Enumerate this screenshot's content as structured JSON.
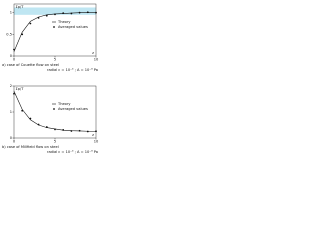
{
  "chart_data": [
    {
      "type": "line",
      "ylabel": "Σp/T",
      "xlabel": "z",
      "caption": "a) case of Couette flow on steel",
      "caption2": "radial c = 10⁻³ ; A = 10⁻⁸ Pa",
      "x": [
        0,
        1,
        2,
        3,
        4,
        5,
        6,
        7,
        8,
        9,
        10
      ],
      "xlim": [
        0,
        10
      ],
      "xticks": [
        0,
        5,
        10
      ],
      "ylim": [
        0,
        1.2
      ],
      "yticks": [
        0,
        0.5,
        1
      ],
      "band": [
        0.95,
        1.12
      ],
      "band_color": "#bfe6f2",
      "series": [
        {
          "name": "Theory",
          "color": "#111111",
          "marker": false,
          "values": [
            0.1,
            0.55,
            0.8,
            0.9,
            0.95,
            0.97,
            0.98,
            0.99,
            1,
            1,
            1
          ]
        },
        {
          "name": "Averaged values",
          "color": "#111111",
          "marker": true,
          "values": [
            0.15,
            0.5,
            0.75,
            0.88,
            0.93,
            0.96,
            0.99,
            0.98,
            1,
            1.01,
            1
          ]
        }
      ]
    },
    {
      "type": "line",
      "ylabel": "Σp/T",
      "xlabel": "z",
      "caption": "b) case of Millfield flow on steel",
      "caption2": "radial c = 10⁻³ ; A = 10⁻⁸ Pa",
      "x": [
        0,
        1,
        2,
        3,
        4,
        5,
        6,
        7,
        8,
        9,
        10
      ],
      "xlim": [
        0,
        10
      ],
      "xticks": [
        0,
        5,
        10
      ],
      "ylim": [
        0,
        2
      ],
      "yticks": [
        0,
        1,
        2
      ],
      "series": [
        {
          "name": "Theory",
          "color": "#111111",
          "marker": false,
          "values": [
            1.8,
            1.1,
            0.7,
            0.5,
            0.4,
            0.35,
            0.3,
            0.28,
            0.27,
            0.26,
            0.25
          ]
        },
        {
          "name": "Averaged values",
          "color": "#111111",
          "marker": true,
          "values": [
            1.7,
            1.05,
            0.75,
            0.52,
            0.42,
            0.33,
            0.31,
            0.27,
            0.28,
            0.25,
            0.26
          ]
        }
      ]
    }
  ]
}
